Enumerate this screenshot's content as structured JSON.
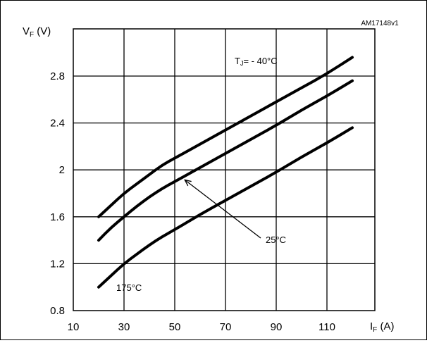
{
  "chart_data": {
    "type": "line",
    "code": "AM17148v1",
    "ylabel": {
      "main": "V",
      "sub": "F",
      "unit": " (V)"
    },
    "xlabel": {
      "main": "I",
      "sub": "F",
      "unit": " (A)"
    },
    "xlim": [
      10,
      125
    ],
    "ylim": [
      0.8,
      3.0
    ],
    "xticks": [
      10,
      30,
      50,
      70,
      90,
      110
    ],
    "yticks": [
      0.8,
      1.2,
      1.6,
      2,
      2.4,
      2.8
    ],
    "ytick_labels": [
      "0.8",
      "1.2",
      "1.6",
      "2",
      "2.4",
      "2.8"
    ],
    "grid": true,
    "series": [
      {
        "name": "TJ = - 40°C",
        "x": [
          20,
          25,
          30,
          35,
          40,
          45,
          50,
          60,
          70,
          80,
          90,
          100,
          110,
          120
        ],
        "y": [
          1.6,
          1.7,
          1.8,
          1.88,
          1.96,
          2.04,
          2.1,
          2.22,
          2.34,
          2.46,
          2.58,
          2.7,
          2.82,
          2.96
        ]
      },
      {
        "name": "25°C",
        "x": [
          20,
          25,
          30,
          35,
          40,
          45,
          50,
          60,
          70,
          80,
          90,
          100,
          110,
          120
        ],
        "y": [
          1.4,
          1.51,
          1.6,
          1.69,
          1.77,
          1.84,
          1.9,
          2.02,
          2.14,
          2.26,
          2.38,
          2.51,
          2.63,
          2.76
        ]
      },
      {
        "name": "175°C",
        "x": [
          20,
          25,
          30,
          35,
          40,
          45,
          50,
          60,
          70,
          80,
          90,
          100,
          110,
          120
        ],
        "y": [
          1.0,
          1.1,
          1.2,
          1.28,
          1.36,
          1.43,
          1.49,
          1.62,
          1.74,
          1.86,
          1.98,
          2.11,
          2.23,
          2.36
        ]
      }
    ],
    "annotations": {
      "tj_prefix_main": "T",
      "tj_prefix_sub": "J",
      "tj_text": "= - 40°C",
      "t25": "25°C",
      "t175": "175°C"
    }
  }
}
